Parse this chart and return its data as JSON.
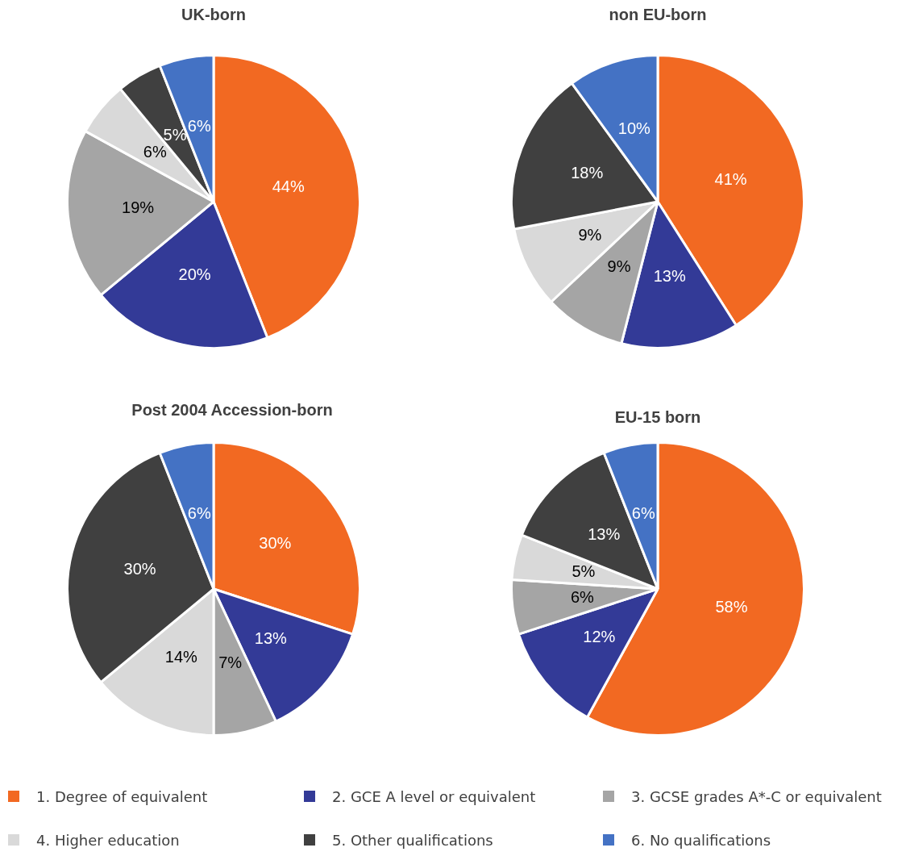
{
  "chart_data": [
    {
      "type": "pie",
      "title": "UK-born",
      "categories": [
        null,
        null,
        null,
        null,
        null,
        null
      ],
      "values": [
        44,
        20,
        19,
        6,
        5,
        6
      ],
      "colors": [
        "#f26922",
        "#333a97",
        "#a5a5a5",
        "#d9d9d9",
        "#404040",
        "#4472c4"
      ],
      "value_labels": [
        "44%",
        "20%",
        "19%",
        "6%",
        "5%",
        "6%"
      ]
    },
    {
      "type": "pie",
      "title": "non EU-born",
      "categories": [
        null,
        null,
        null,
        null,
        null,
        null
      ],
      "values": [
        41,
        13,
        9,
        9,
        18,
        10
      ],
      "colors": [
        "#f26922",
        "#333a97",
        "#a5a5a5",
        "#d9d9d9",
        "#404040",
        "#4472c4"
      ],
      "value_labels": [
        "41%",
        "13%",
        "9%",
        "9%",
        "18%",
        "10%"
      ]
    },
    {
      "type": "pie",
      "title": "Post 2004 Accession-born",
      "categories": [
        "1. Degree of equivalent",
        "2. GCE A level or equivalent",
        "3. GCSE grades A*-C or equivalent",
        "4. Higher education",
        "5. Other qualifications",
        "6. No qualifications"
      ],
      "values": [
        30,
        13,
        7,
        14,
        30,
        6
      ],
      "colors": [
        "#f26922",
        "#333a97",
        "#a5a5a5",
        "#d9d9d9",
        "#404040",
        "#4472c4"
      ],
      "value_labels": [
        "30%",
        "13%",
        "7%",
        "14%",
        "30%",
        "6%"
      ],
      "legend": "bottom"
    },
    {
      "type": "pie",
      "title": "EU-15 born",
      "categories": [
        null,
        null,
        null,
        null,
        null,
        null
      ],
      "values": [
        58,
        12,
        6,
        5,
        13,
        6
      ],
      "colors": [
        "#f26922",
        "#333a97",
        "#a5a5a5",
        "#d9d9d9",
        "#404040",
        "#4472c4"
      ],
      "value_labels": [
        "58%",
        "12%",
        "6%",
        "5%",
        "13%",
        "6%"
      ]
    }
  ]
}
